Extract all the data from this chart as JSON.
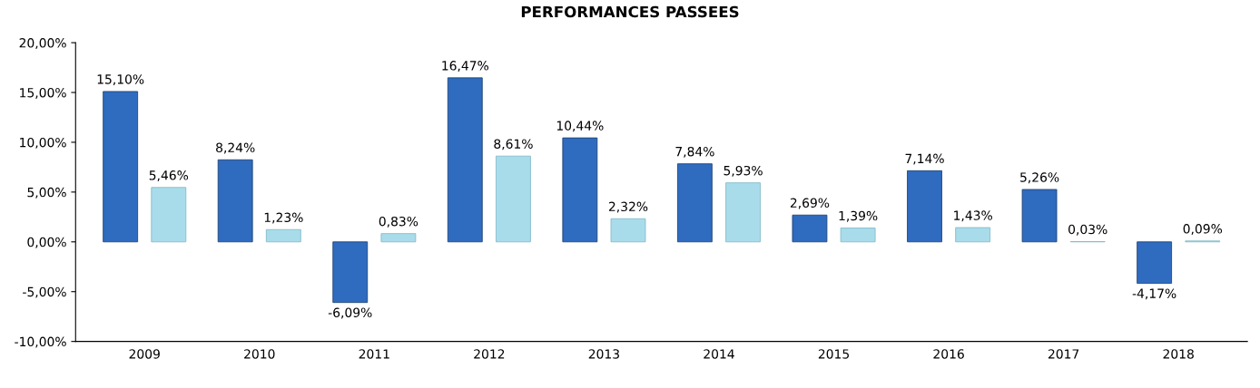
{
  "chart_data": {
    "type": "bar",
    "title": "PERFORMANCES PASSEES",
    "categories": [
      "2009",
      "2010",
      "2011",
      "2012",
      "2013",
      "2014",
      "2015",
      "2016",
      "2017",
      "2018"
    ],
    "series": [
      {
        "color": "#2f6bbf",
        "values": [
          15.1,
          8.24,
          -6.09,
          16.47,
          10.44,
          7.84,
          2.69,
          7.14,
          5.26,
          -4.17
        ],
        "value_labels": [
          "15,10%",
          "8,24%",
          "-6,09%",
          "16,47%",
          "10,44%",
          "7,84%",
          "2,69%",
          "7,14%",
          "5,26%",
          "-4,17%"
        ]
      },
      {
        "color": "#a9dcea",
        "values": [
          5.46,
          1.23,
          0.83,
          8.61,
          2.32,
          5.93,
          1.39,
          1.43,
          0.03,
          0.09
        ],
        "value_labels": [
          "5,46%",
          "1,23%",
          "0,83%",
          "8,61%",
          "2,32%",
          "5,93%",
          "1,39%",
          "1,43%",
          "0,03%",
          "0,09%"
        ]
      }
    ],
    "ylim": [
      -10,
      20
    ],
    "yticks": [
      {
        "value": -10,
        "label": "-10,00%"
      },
      {
        "value": -5,
        "label": "-5,00%"
      },
      {
        "value": 0,
        "label": "0,00%"
      },
      {
        "value": 5,
        "label": "5,00%"
      },
      {
        "value": 10,
        "label": "10,00%"
      },
      {
        "value": 15,
        "label": "15,00%"
      },
      {
        "value": 20,
        "label": "20,00%"
      }
    ],
    "grid": false,
    "legend": false
  }
}
